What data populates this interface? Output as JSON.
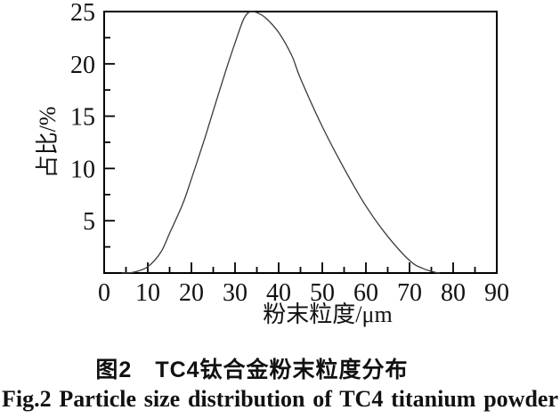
{
  "figure": {
    "caption_zh": "图2　TC4钛合金粉末粒度分布",
    "caption_en": "Fig.2 Particle size distribution of TC4 titanium powder"
  },
  "chart_data": {
    "type": "line",
    "title": "",
    "xlabel": "粉末粒度/μm",
    "ylabel": "占比/%",
    "xlim": [
      0,
      90
    ],
    "ylim": [
      0,
      25
    ],
    "x_major_ticks": [
      0,
      10,
      20,
      30,
      40,
      50,
      60,
      70,
      80,
      90
    ],
    "x_minor_step": 5,
    "y_major_ticks": [
      5,
      10,
      15,
      20,
      25
    ],
    "y_minor_step": 2.5,
    "grid": false,
    "legend": "none",
    "frame": "closed-box",
    "tick_direction": "inward",
    "frame_color": "#000000",
    "curve_color": "#3a3a3a",
    "peak": {
      "x": 33,
      "y": 25
    },
    "series": [
      {
        "name": "particle-size-distribution",
        "points": [
          [
            4,
            0
          ],
          [
            5,
            0
          ],
          [
            7,
            0.1
          ],
          [
            10,
            0.6
          ],
          [
            13,
            2.0
          ],
          [
            15,
            3.8
          ],
          [
            18,
            6.6
          ],
          [
            20,
            9.0
          ],
          [
            23,
            12.8
          ],
          [
            25,
            15.5
          ],
          [
            28,
            19.5
          ],
          [
            30,
            22.0
          ],
          [
            32,
            24.3
          ],
          [
            33.5,
            25.0
          ],
          [
            35,
            24.9
          ],
          [
            37,
            24.4
          ],
          [
            40,
            23.0
          ],
          [
            43,
            20.8
          ],
          [
            45,
            18.6
          ],
          [
            50,
            14.0
          ],
          [
            55,
            10.0
          ],
          [
            60,
            6.4
          ],
          [
            65,
            3.5
          ],
          [
            70,
            1.2
          ],
          [
            73,
            0.45
          ],
          [
            76,
            0.05
          ],
          [
            77,
            0
          ]
        ]
      }
    ]
  }
}
